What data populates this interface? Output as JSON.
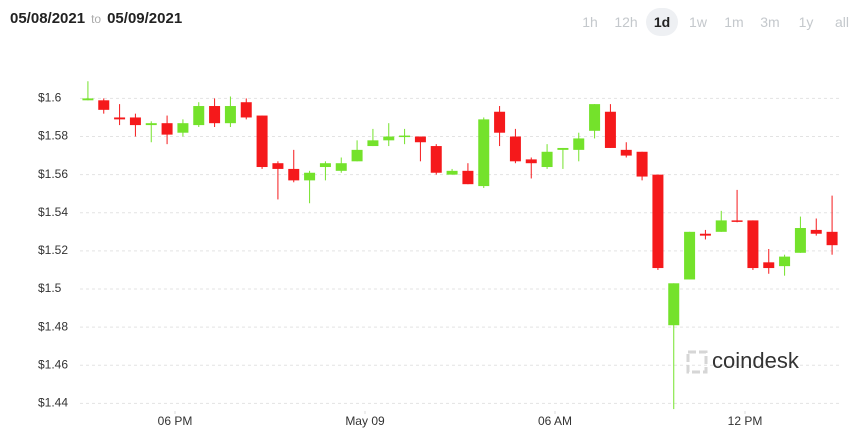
{
  "header": {
    "from": "05/08/2021",
    "to_label": "to",
    "to": "05/09/2021"
  },
  "ranges": [
    "1h",
    "12h",
    "1d",
    "1w",
    "1m",
    "3m",
    "1y",
    "all"
  ],
  "selected_range": "1d",
  "chart_data": {
    "type": "candlestick",
    "watermark": "coindesk",
    "x": [
      15.25,
      15.75,
      16.25,
      16.75,
      17.25,
      17.75,
      18.25,
      18.75,
      19.25,
      19.75,
      20.25,
      20.75,
      21.25,
      21.75,
      22.25,
      22.75,
      23.25,
      23.75,
      24.25,
      24.75,
      25.25,
      25.75,
      26.25,
      26.75,
      27.25,
      27.75,
      28.25,
      28.75,
      29.25,
      29.75,
      30.25,
      30.75,
      31.25,
      31.75,
      32.25,
      32.75,
      33.25,
      33.75,
      34.25,
      34.75,
      35.25,
      35.75,
      36.25,
      36.75,
      37.25,
      37.75,
      38.25,
      38.75
    ],
    "open": [
      1.599,
      1.599,
      1.59,
      1.59,
      1.586,
      1.587,
      1.582,
      1.586,
      1.596,
      1.587,
      1.598,
      1.591,
      1.566,
      1.563,
      1.557,
      1.564,
      1.562,
      1.567,
      1.575,
      1.578,
      1.58,
      1.58,
      1.575,
      1.56,
      1.562,
      1.554,
      1.593,
      1.58,
      1.568,
      1.564,
      1.573,
      1.573,
      1.583,
      1.593,
      1.573,
      1.572,
      1.56,
      1.481,
      1.505,
      1.529,
      1.53,
      1.536,
      1.536,
      1.514,
      1.512,
      1.519,
      1.531,
      1.53
    ],
    "high": [
      1.609,
      1.6,
      1.597,
      1.592,
      1.588,
      1.591,
      1.589,
      1.598,
      1.6,
      1.601,
      1.6,
      1.591,
      1.567,
      1.573,
      1.562,
      1.567,
      1.569,
      1.578,
      1.584,
      1.587,
      1.584,
      1.58,
      1.576,
      1.563,
      1.566,
      1.59,
      1.596,
      1.584,
      1.569,
      1.576,
      1.574,
      1.582,
      1.597,
      1.597,
      1.577,
      1.572,
      1.56,
      1.503,
      1.53,
      1.531,
      1.541,
      1.552,
      1.536,
      1.521,
      1.518,
      1.538,
      1.537,
      1.549
    ],
    "low": [
      1.599,
      1.592,
      1.586,
      1.58,
      1.577,
      1.576,
      1.58,
      1.585,
      1.585,
      1.585,
      1.589,
      1.563,
      1.547,
      1.556,
      1.545,
      1.557,
      1.561,
      1.567,
      1.575,
      1.575,
      1.576,
      1.567,
      1.56,
      1.56,
      1.555,
      1.553,
      1.575,
      1.566,
      1.558,
      1.563,
      1.563,
      1.567,
      1.579,
      1.574,
      1.569,
      1.557,
      1.51,
      1.437,
      1.505,
      1.526,
      1.53,
      1.535,
      1.51,
      1.508,
      1.507,
      1.519,
      1.528,
      1.518
    ],
    "close": [
      1.6,
      1.594,
      1.589,
      1.586,
      1.587,
      1.581,
      1.587,
      1.596,
      1.587,
      1.596,
      1.59,
      1.564,
      1.563,
      1.557,
      1.561,
      1.566,
      1.566,
      1.573,
      1.578,
      1.58,
      1.5805,
      1.577,
      1.561,
      1.562,
      1.555,
      1.589,
      1.582,
      1.567,
      1.566,
      1.572,
      1.574,
      1.579,
      1.597,
      1.574,
      1.57,
      1.559,
      1.511,
      1.503,
      1.53,
      1.528,
      1.536,
      1.5355,
      1.511,
      1.511,
      1.517,
      1.532,
      1.529,
      1.523
    ],
    "up_color": "#74e22b",
    "down_color": "#f5191b",
    "ylim": [
      1.436,
      1.617
    ],
    "yticks": [
      {
        "value": 1.44,
        "label": "$1.44"
      },
      {
        "value": 1.46,
        "label": "$1.46"
      },
      {
        "value": 1.48,
        "label": "$1.48"
      },
      {
        "value": 1.5,
        "label": "$1.5"
      },
      {
        "value": 1.52,
        "label": "$1.52"
      },
      {
        "value": 1.54,
        "label": "$1.54"
      },
      {
        "value": 1.56,
        "label": "$1.56"
      },
      {
        "value": 1.58,
        "label": "$1.58"
      },
      {
        "value": 1.6,
        "label": "$1.6"
      }
    ],
    "xlim": [
      15,
      39
    ],
    "xticks": [
      {
        "value": 18,
        "label": "06 PM"
      },
      {
        "value": 24,
        "label": "May 09"
      },
      {
        "value": 30,
        "label": "06 AM"
      },
      {
        "value": 36,
        "label": "12 PM"
      }
    ],
    "grid": true
  }
}
